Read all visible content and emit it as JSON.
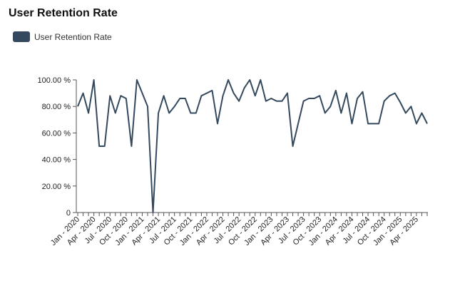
{
  "chart_data": {
    "type": "line",
    "title": "User Retention Rate",
    "legend": {
      "position": "top-left",
      "entries": [
        "User Retention Rate"
      ]
    },
    "grid": false,
    "ylim": [
      0,
      100
    ],
    "y_ticks": [
      "0",
      "20.00 %",
      "40.00 %",
      "60.00 %",
      "80.00 %",
      "100.00 %"
    ],
    "y_tick_values": [
      0,
      20,
      40,
      60,
      80,
      100
    ],
    "x_tick_labels": [
      "Jan - 2020",
      "Apr - 2020",
      "Jul - 2020",
      "Oct - 2020",
      "Jan - 2021",
      "Apr - 2021",
      "Jul - 2021",
      "Oct - 2021",
      "Jan - 2022",
      "Apr - 2022",
      "Jul - 2022",
      "Oct - 2022",
      "Jan - 2023",
      "Apr - 2023",
      "Jul - 2023",
      "Oct - 2023",
      "Jan - 2024",
      "Apr - 2024",
      "Jul - 2024",
      "Oct - 2024",
      "Jan - 2025",
      "Apr - 2025"
    ],
    "x": [
      "2020-01",
      "2020-02",
      "2020-03",
      "2020-04",
      "2020-05",
      "2020-06",
      "2020-07",
      "2020-08",
      "2020-09",
      "2020-10",
      "2020-11",
      "2020-12",
      "2021-01",
      "2021-02",
      "2021-03",
      "2021-04",
      "2021-05",
      "2021-06",
      "2021-07",
      "2021-08",
      "2021-09",
      "2021-10",
      "2021-11",
      "2021-12",
      "2022-01",
      "2022-02",
      "2022-03",
      "2022-04",
      "2022-05",
      "2022-06",
      "2022-07",
      "2022-08",
      "2022-09",
      "2022-10",
      "2022-11",
      "2022-12",
      "2023-01",
      "2023-02",
      "2023-03",
      "2023-04",
      "2023-05",
      "2023-06",
      "2023-07",
      "2023-08",
      "2023-09",
      "2023-10",
      "2023-11",
      "2023-12",
      "2024-01",
      "2024-02",
      "2024-03",
      "2024-04",
      "2024-05",
      "2024-06",
      "2024-07",
      "2024-08",
      "2024-09",
      "2024-10",
      "2024-11",
      "2024-12",
      "2025-01",
      "2025-02",
      "2025-03",
      "2025-04",
      "2025-05",
      "2025-06"
    ],
    "series": [
      {
        "name": "User Retention Rate",
        "color": "#34495e",
        "values": [
          80,
          90,
          75,
          100,
          50,
          50,
          88,
          75,
          88,
          86,
          50,
          100,
          90,
          80,
          0,
          75,
          88,
          75,
          80,
          86,
          86,
          75,
          75,
          88,
          90,
          92,
          67,
          88,
          100,
          90,
          84,
          94,
          100,
          88,
          100,
          84,
          86,
          84,
          84,
          90,
          50,
          67,
          84,
          86,
          86,
          88,
          75,
          80,
          92,
          75,
          90,
          67,
          86,
          91,
          67,
          67,
          67,
          84,
          88,
          90,
          83,
          75,
          80,
          67,
          75,
          67
        ]
      }
    ]
  }
}
